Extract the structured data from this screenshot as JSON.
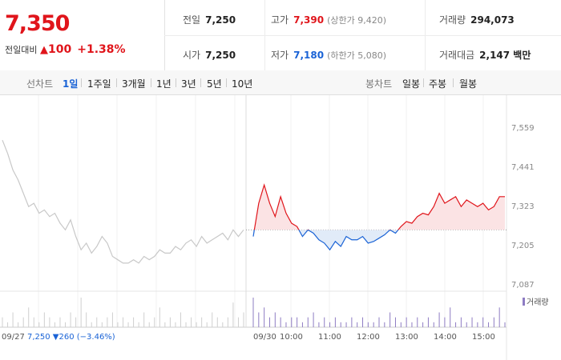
{
  "quote": {
    "current_price": "7,350",
    "change_label": "전일대비",
    "change_arrow": "▲",
    "change_value": "100",
    "change_pct": "+1.38%",
    "prev_close": {
      "label": "전일",
      "value": "7,250"
    },
    "open": {
      "label": "시가",
      "value": "7,250"
    },
    "high": {
      "label": "고가",
      "value": "7,390",
      "limit": "(상한가 9,420)"
    },
    "low": {
      "label": "저가",
      "value": "7,180",
      "limit": "(하한가 5,080)"
    },
    "volume": {
      "label": "거래량",
      "value": "294,073"
    },
    "trade_amount": {
      "label": "거래대금",
      "value": "2,147 백만"
    }
  },
  "period_bar": {
    "line_label": "선차트",
    "line_periods": [
      "1일",
      "1주일",
      "3개월",
      "1년",
      "3년",
      "5년",
      "10년"
    ],
    "active_period": "1일",
    "candle_label": "봉차트",
    "candle_periods": [
      "일봉",
      "주봉",
      "월봉"
    ]
  },
  "colors": {
    "up": "#e0151b",
    "down": "#1a63d6",
    "prev_day_line": "#c8c8c8",
    "volume": "#8e7cc3"
  },
  "chart_data": {
    "type": "line",
    "y_ticks": [
      "7,559",
      "7,441",
      "7,323",
      "7,205",
      "7,087"
    ],
    "ylim": [
      7087,
      7559
    ],
    "baseline": 7250,
    "prev_day": {
      "date": "09/27",
      "close": "7,250",
      "change": "▼260",
      "change_pct": "(−3.46%)",
      "values": [
        7520,
        7480,
        7430,
        7400,
        7360,
        7320,
        7330,
        7300,
        7310,
        7290,
        7300,
        7270,
        7250,
        7280,
        7230,
        7190,
        7210,
        7180,
        7200,
        7230,
        7210,
        7170,
        7160,
        7150,
        7150,
        7160,
        7150,
        7170,
        7160,
        7170,
        7190,
        7180,
        7180,
        7200,
        7190,
        7210,
        7220,
        7200,
        7230,
        7210,
        7220,
        7230,
        7240,
        7220,
        7250,
        7230,
        7250
      ]
    },
    "today": {
      "date": "09/30",
      "x_ticks": [
        "10:00",
        "11:00",
        "12:00",
        "13:00",
        "14:00",
        "15:00"
      ],
      "values": [
        7230,
        7330,
        7385,
        7330,
        7290,
        7350,
        7300,
        7270,
        7260,
        7230,
        7250,
        7240,
        7220,
        7210,
        7190,
        7215,
        7200,
        7230,
        7220,
        7220,
        7230,
        7210,
        7215,
        7225,
        7235,
        7250,
        7240,
        7260,
        7275,
        7270,
        7290,
        7300,
        7295,
        7320,
        7360,
        7330,
        7340,
        7350,
        7320,
        7340,
        7330,
        7320,
        7330,
        7310,
        7320,
        7350,
        7350
      ]
    },
    "volume_label": "거래량",
    "prev_day_volume": [
      2,
      1,
      3,
      1,
      2,
      4,
      2,
      1,
      3,
      2,
      1,
      2,
      1,
      3,
      2,
      6,
      3,
      1,
      2,
      1,
      2,
      3,
      1,
      2,
      1,
      2,
      1,
      3,
      1,
      2,
      4,
      1,
      2,
      1,
      3,
      1,
      2,
      1,
      2,
      1,
      3,
      2,
      1,
      2,
      5,
      2,
      3
    ],
    "today_volume": [
      6,
      3,
      4,
      2,
      3,
      2,
      1,
      2,
      2,
      1,
      2,
      3,
      1,
      2,
      1,
      2,
      1,
      1,
      2,
      1,
      2,
      1,
      1,
      2,
      1,
      3,
      2,
      1,
      2,
      1,
      2,
      1,
      2,
      1,
      3,
      2,
      4,
      1,
      2,
      1,
      2,
      1,
      2,
      1,
      2,
      4,
      1
    ]
  }
}
